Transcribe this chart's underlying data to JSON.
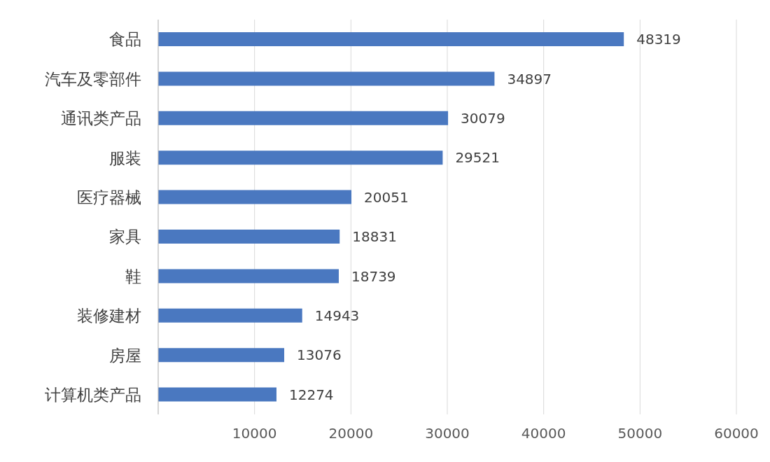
{
  "chart_data": {
    "type": "bar",
    "orientation": "horizontal",
    "categories": [
      "食品",
      "汽车及零部件",
      "通讯类产品",
      "服装",
      "医疗器械",
      "家具",
      "鞋",
      "装修建材",
      "房屋",
      "计算机类产品"
    ],
    "values": [
      48319,
      34897,
      30079,
      29521,
      20051,
      18831,
      18739,
      14943,
      13076,
      12274
    ],
    "color": "#4a78c0",
    "xlim": [
      0,
      60000
    ],
    "xticks": [
      {
        "value": 0,
        "label": null
      },
      10000,
      20000,
      30000,
      40000,
      50000,
      60000
    ],
    "grid": "x",
    "data_labels": true
  }
}
